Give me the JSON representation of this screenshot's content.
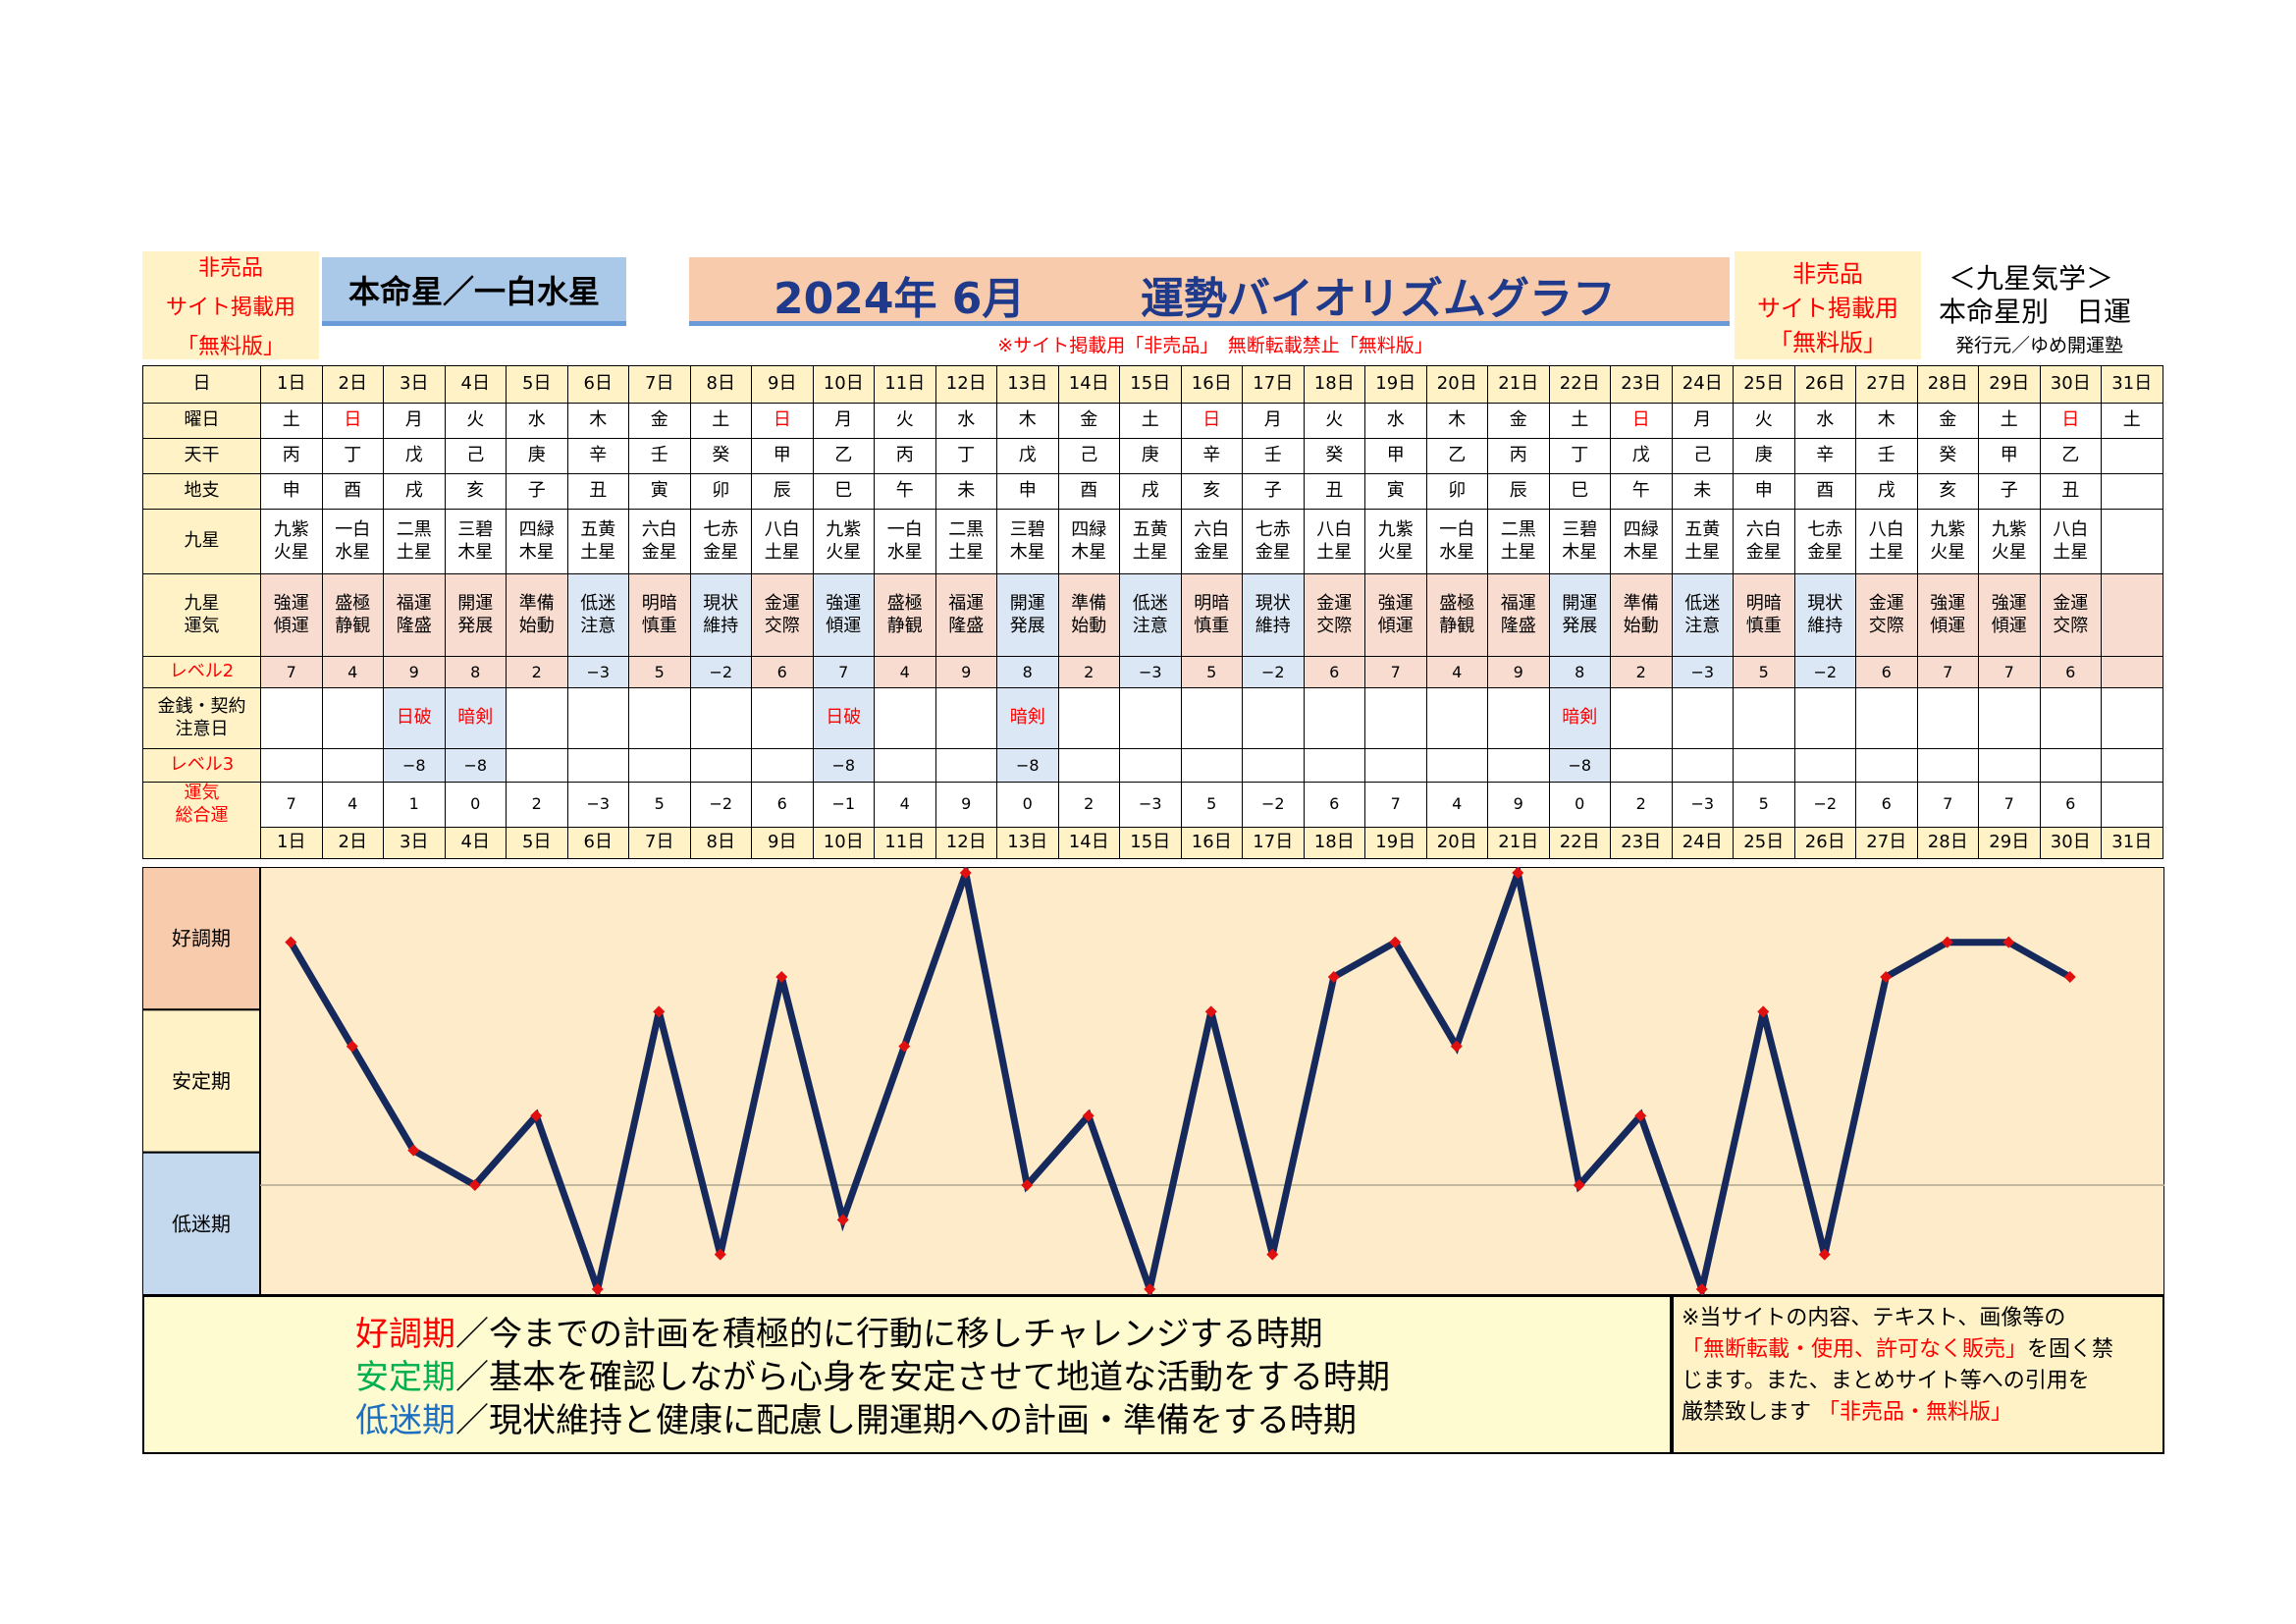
{
  "header": {
    "left_note": [
      "非売品",
      "サイト掲載用",
      "「無料版」"
    ],
    "honmei_label": "本命星／一白水星",
    "title_year_month": "2024年 6月",
    "title_main": "運勢バイオリズムグラフ",
    "site_note": "※サイト掲載用「非売品」　無断転載禁止「無料版」",
    "right_note": [
      "非売品",
      "サイト掲載用",
      "「無料版」"
    ],
    "kyusei_title": "＜九星気学＞",
    "kyusei_sub": "本命星別　日運",
    "publisher": "発行元／ゆめ開運塾"
  },
  "table": {
    "row_labels": {
      "day": "日",
      "weekday": "曜日",
      "tenkan": "天干",
      "chishi": "地支",
      "kyusei": "九星",
      "kyusei_unki": [
        "九星",
        "運気"
      ],
      "level2": "レベル2",
      "kinsen": [
        "金銭・契約",
        "注意日"
      ],
      "level3": "レベル3",
      "unki_sogo": [
        "運気",
        "総合運"
      ]
    },
    "days": [
      "1日",
      "2日",
      "3日",
      "4日",
      "5日",
      "6日",
      "7日",
      "8日",
      "9日",
      "10日",
      "11日",
      "12日",
      "13日",
      "14日",
      "15日",
      "16日",
      "17日",
      "18日",
      "19日",
      "20日",
      "21日",
      "22日",
      "23日",
      "24日",
      "25日",
      "26日",
      "27日",
      "28日",
      "29日",
      "30日",
      "31日"
    ],
    "weekdays": [
      "土",
      "日",
      "月",
      "火",
      "水",
      "木",
      "金",
      "土",
      "日",
      "月",
      "火",
      "水",
      "木",
      "金",
      "土",
      "日",
      "月",
      "火",
      "水",
      "木",
      "金",
      "土",
      "日",
      "月",
      "火",
      "水",
      "木",
      "金",
      "土",
      "日",
      "土"
    ],
    "tenkan": [
      "丙",
      "丁",
      "戊",
      "己",
      "庚",
      "辛",
      "壬",
      "癸",
      "甲",
      "乙",
      "丙",
      "丁",
      "戊",
      "己",
      "庚",
      "辛",
      "壬",
      "癸",
      "甲",
      "乙",
      "丙",
      "丁",
      "戊",
      "己",
      "庚",
      "辛",
      "壬",
      "癸",
      "甲",
      "乙",
      ""
    ],
    "chishi": [
      "申",
      "酉",
      "戌",
      "亥",
      "子",
      "丑",
      "寅",
      "卯",
      "辰",
      "巳",
      "午",
      "未",
      "申",
      "酉",
      "戌",
      "亥",
      "子",
      "丑",
      "寅",
      "卯",
      "辰",
      "巳",
      "午",
      "未",
      "申",
      "酉",
      "戌",
      "亥",
      "子",
      "丑",
      ""
    ],
    "kyusei": [
      [
        "九紫",
        "火星"
      ],
      [
        "一白",
        "水星"
      ],
      [
        "二黒",
        "土星"
      ],
      [
        "三碧",
        "木星"
      ],
      [
        "四緑",
        "木星"
      ],
      [
        "五黄",
        "土星"
      ],
      [
        "六白",
        "金星"
      ],
      [
        "七赤",
        "金星"
      ],
      [
        "八白",
        "土星"
      ],
      [
        "九紫",
        "火星"
      ],
      [
        "一白",
        "水星"
      ],
      [
        "二黒",
        "土星"
      ],
      [
        "三碧",
        "木星"
      ],
      [
        "四緑",
        "木星"
      ],
      [
        "五黄",
        "土星"
      ],
      [
        "六白",
        "金星"
      ],
      [
        "七赤",
        "金星"
      ],
      [
        "八白",
        "土星"
      ],
      [
        "九紫",
        "火星"
      ],
      [
        "一白",
        "水星"
      ],
      [
        "二黒",
        "土星"
      ],
      [
        "三碧",
        "木星"
      ],
      [
        "四緑",
        "木星"
      ],
      [
        "五黄",
        "土星"
      ],
      [
        "六白",
        "金星"
      ],
      [
        "七赤",
        "金星"
      ],
      [
        "八白",
        "土星"
      ],
      [
        "九紫",
        "火星"
      ],
      [
        "九紫",
        "火星"
      ],
      [
        "八白",
        "土星"
      ],
      [
        "",
        ""
      ]
    ],
    "unki": [
      [
        "強運",
        "傾運"
      ],
      [
        "盛極",
        "静観"
      ],
      [
        "福運",
        "隆盛"
      ],
      [
        "開運",
        "発展"
      ],
      [
        "準備",
        "始動"
      ],
      [
        "低迷",
        "注意"
      ],
      [
        "明暗",
        "慎重"
      ],
      [
        "現状",
        "維持"
      ],
      [
        "金運",
        "交際"
      ],
      [
        "強運",
        "傾運"
      ],
      [
        "盛極",
        "静観"
      ],
      [
        "福運",
        "隆盛"
      ],
      [
        "開運",
        "発展"
      ],
      [
        "準備",
        "始動"
      ],
      [
        "低迷",
        "注意"
      ],
      [
        "明暗",
        "慎重"
      ],
      [
        "現状",
        "維持"
      ],
      [
        "金運",
        "交際"
      ],
      [
        "強運",
        "傾運"
      ],
      [
        "盛極",
        "静観"
      ],
      [
        "福運",
        "隆盛"
      ],
      [
        "開運",
        "発展"
      ],
      [
        "準備",
        "始動"
      ],
      [
        "低迷",
        "注意"
      ],
      [
        "明暗",
        "慎重"
      ],
      [
        "現状",
        "維持"
      ],
      [
        "金運",
        "交際"
      ],
      [
        "強運",
        "傾運"
      ],
      [
        "強運",
        "傾運"
      ],
      [
        "金運",
        "交際"
      ],
      [
        "",
        ""
      ]
    ],
    "level2": [
      "7",
      "4",
      "9",
      "8",
      "2",
      "−3",
      "5",
      "−2",
      "6",
      "7",
      "4",
      "9",
      "8",
      "2",
      "−3",
      "5",
      "−2",
      "6",
      "7",
      "4",
      "9",
      "8",
      "2",
      "−3",
      "5",
      "−2",
      "6",
      "7",
      "7",
      "6",
      ""
    ],
    "kinsen": [
      "",
      "",
      "日破",
      "暗剣",
      "",
      "",
      "",
      "",
      "",
      "日破",
      "",
      "",
      "暗剣",
      "",
      "",
      "",
      "",
      "",
      "",
      "",
      "",
      "暗剣",
      "",
      "",
      "",
      "",
      "",
      "",
      "",
      "",
      ""
    ],
    "level3": [
      "",
      "",
      "−8",
      "−8",
      "",
      "",
      "",
      "",
      "",
      "−8",
      "",
      "",
      "−8",
      "",
      "",
      "",
      "",
      "",
      "",
      "",
      "",
      "−8",
      "",
      "",
      "",
      "",
      "",
      "",
      "",
      "",
      ""
    ],
    "sogo": [
      "7",
      "4",
      "1",
      "0",
      "2",
      "−3",
      "5",
      "−2",
      "6",
      "−1",
      "4",
      "9",
      "0",
      "2",
      "−3",
      "5",
      "−2",
      "6",
      "7",
      "4",
      "9",
      "0",
      "2",
      "−3",
      "5",
      "−2",
      "6",
      "7",
      "7",
      "6",
      ""
    ],
    "colors": {
      "sunday_red": "#ff0000",
      "header_yellow": "#fff2c6",
      "low_blue": "#dbe7f4",
      "high_pink": "#f8dcd0"
    }
  },
  "chart_data": {
    "type": "line",
    "x": [
      1,
      2,
      3,
      4,
      5,
      6,
      7,
      8,
      9,
      10,
      11,
      12,
      13,
      14,
      15,
      16,
      17,
      18,
      19,
      20,
      21,
      22,
      23,
      24,
      25,
      26,
      27,
      28,
      29,
      30
    ],
    "series": [
      {
        "values": [
          7,
          4,
          1,
          0,
          2,
          -3,
          5,
          -2,
          6,
          -1,
          4,
          9,
          0,
          2,
          -3,
          5,
          -2,
          6,
          7,
          4,
          9,
          0,
          2,
          -3,
          5,
          -2,
          6,
          7,
          7,
          6
        ]
      }
    ],
    "ylim": [
      -3,
      9
    ],
    "bands": [
      "好調期",
      "安定期",
      "低迷期"
    ],
    "line_color": "#15295c",
    "marker_color": "#e01010",
    "grid": false,
    "reference_line_value": 0
  },
  "legend": {
    "lines": [
      {
        "term": "好調期",
        "term_color": "#ff0000",
        "text": "／今までの計画を積極的に行動に移しチャレンジする時期"
      },
      {
        "term": "安定期",
        "term_color": "#00b050",
        "text": "／基本を確認しながら心身を安定させて地道な活動をする時期"
      },
      {
        "term": "低迷期",
        "term_color": "#1f6fc0",
        "text": "／現状維持と健康に配慮し開運期への計画・準備をする時期"
      }
    ]
  },
  "notice": {
    "line1": "※当サイトの内容、テキスト、画像等の",
    "line2_red": "「無断転載・使用、許可なく販売」",
    "line2_rest": "を固く禁",
    "line3": "じます。また、まとめサイト等への引用を",
    "line4": "厳禁致します",
    "line4_red": "「非売品・無料版」"
  }
}
